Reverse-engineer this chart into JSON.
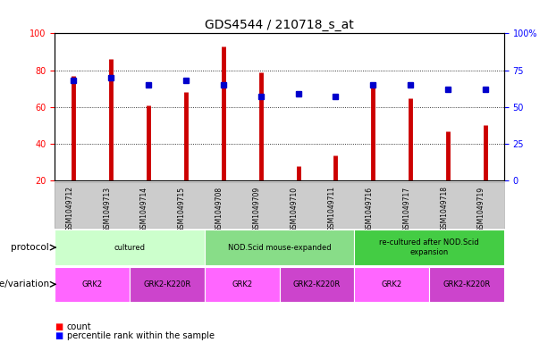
{
  "title": "GDS4544 / 210718_s_at",
  "samples": [
    "GSM1049712",
    "GSM1049713",
    "GSM1049714",
    "GSM1049715",
    "GSM1049708",
    "GSM1049709",
    "GSM1049710",
    "GSM1049711",
    "GSM1049716",
    "GSM1049717",
    "GSM1049718",
    "GSM1049719"
  ],
  "counts": [
    77,
    86,
    61,
    68,
    93,
    79,
    28,
    34,
    72,
    65,
    47,
    50
  ],
  "percentiles": [
    68,
    70,
    65,
    68,
    65,
    57,
    59,
    57,
    65,
    65,
    62,
    62
  ],
  "ylim_left": [
    20,
    100
  ],
  "ylim_right": [
    0,
    100
  ],
  "yticks_left": [
    20,
    40,
    60,
    80,
    100
  ],
  "yticks_right": [
    0,
    25,
    50,
    75,
    100
  ],
  "ytick_labels_left": [
    "20",
    "40",
    "60",
    "80",
    "100"
  ],
  "ytick_labels_right": [
    "0",
    "25",
    "50",
    "75",
    "100%"
  ],
  "bar_color": "#cc0000",
  "dot_color": "#0000cc",
  "bg_color": "#ffffff",
  "protocol_groups": [
    {
      "label": "cultured",
      "start": 0,
      "end": 3,
      "color": "#ccffcc"
    },
    {
      "label": "NOD.Scid mouse-expanded",
      "start": 4,
      "end": 7,
      "color": "#88dd88"
    },
    {
      "label": "re-cultured after NOD.Scid\nexpansion",
      "start": 8,
      "end": 11,
      "color": "#44cc44"
    }
  ],
  "genotype_groups": [
    {
      "label": "GRK2",
      "start": 0,
      "end": 1,
      "color": "#ff66ff"
    },
    {
      "label": "GRK2-K220R",
      "start": 2,
      "end": 3,
      "color": "#cc44cc"
    },
    {
      "label": "GRK2",
      "start": 4,
      "end": 5,
      "color": "#ff66ff"
    },
    {
      "label": "GRK2-K220R",
      "start": 6,
      "end": 7,
      "color": "#cc44cc"
    },
    {
      "label": "GRK2",
      "start": 8,
      "end": 9,
      "color": "#ff66ff"
    },
    {
      "label": "GRK2-K220R",
      "start": 10,
      "end": 11,
      "color": "#cc44cc"
    }
  ],
  "title_fontsize": 10,
  "tick_fontsize": 7,
  "label_fontsize": 7.5
}
